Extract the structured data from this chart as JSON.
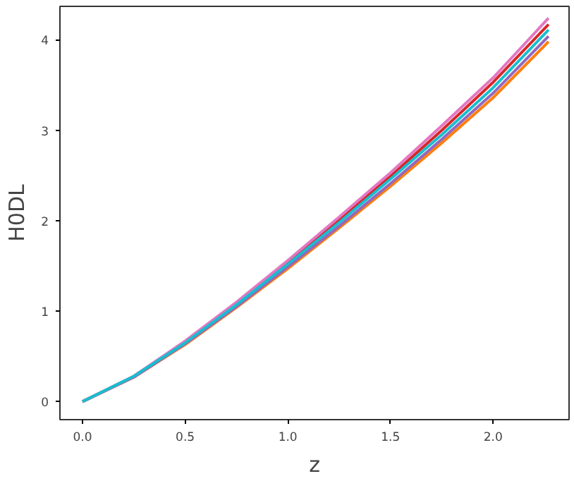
{
  "chart_data": {
    "type": "line",
    "xlabel": "z",
    "ylabel": "H0DL",
    "x": [
      0,
      0.25,
      0.5,
      0.75,
      1,
      1.25,
      1.5,
      1.75,
      2,
      2.27
    ],
    "xlim": [
      -0.11,
      2.37
    ],
    "ylim": [
      -0.2,
      4.37
    ],
    "xticks": [
      {
        "value": 0,
        "label": "0.0"
      },
      {
        "value": 0.5,
        "label": "0.5"
      },
      {
        "value": 1,
        "label": "1.0"
      },
      {
        "value": 1.5,
        "label": "1.5"
      },
      {
        "value": 2,
        "label": "2.0"
      }
    ],
    "yticks": [
      0,
      1,
      2,
      3,
      4
    ],
    "grid": false,
    "marker": "none",
    "line_style": "solid",
    "series": [
      {
        "color": "#ff7f0e",
        "values": [
          0,
          0.27,
          0.63,
          1.04,
          1.47,
          1.92,
          2.38,
          2.86,
          3.36,
          3.98
        ]
      },
      {
        "color": "#9467bd",
        "values": [
          0,
          0.27,
          0.64,
          1.05,
          1.49,
          1.94,
          2.41,
          2.9,
          3.41,
          4.04
        ]
      },
      {
        "color": "#d62728",
        "values": [
          0,
          0.28,
          0.66,
          1.09,
          1.54,
          2.01,
          2.49,
          3.0,
          3.53,
          4.17
        ]
      },
      {
        "color": "#e377c2",
        "values": [
          0,
          0.28,
          0.67,
          1.1,
          1.56,
          2.04,
          2.53,
          3.05,
          3.58,
          4.24
        ]
      },
      {
        "color": "#17becf",
        "values": [
          0,
          0.28,
          0.65,
          1.07,
          1.52,
          1.98,
          2.46,
          2.95,
          3.47,
          4.11
        ]
      }
    ]
  }
}
